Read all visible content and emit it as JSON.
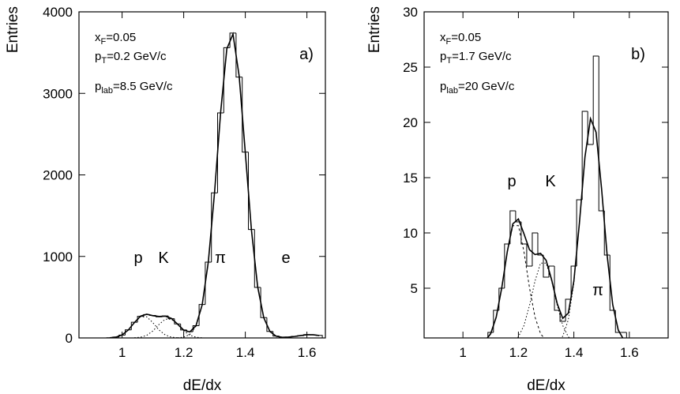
{
  "chart_data": [
    {
      "type": "histogram",
      "label": "a)",
      "xlabel": "dE/dx",
      "ylabel": "Entries",
      "xlim": [
        0.86,
        1.66
      ],
      "ylim": [
        0,
        4000
      ],
      "xticks": [
        1,
        1.2,
        1.4,
        1.6
      ],
      "yticks": [
        0,
        1000,
        2000,
        3000,
        4000
      ],
      "annotations": [
        {
          "text": "x",
          "sub": "F",
          "tail": "=0.05"
        },
        {
          "text": "p",
          "sub": "T",
          "tail": "=0.2 GeV/c"
        },
        {
          "text": "p",
          "sub": "lab",
          "tail": "=8.5 GeV/c"
        }
      ],
      "peak_labels": [
        "p",
        "K",
        "π",
        "e"
      ],
      "color": "#000000",
      "bins": [
        0.95,
        0.97,
        0.99,
        1.01,
        1.03,
        1.05,
        1.07,
        1.09,
        1.11,
        1.13,
        1.15,
        1.17,
        1.19,
        1.21,
        1.23,
        1.25,
        1.27,
        1.29,
        1.31,
        1.33,
        1.35,
        1.37,
        1.39,
        1.41,
        1.43,
        1.45,
        1.47,
        1.49,
        1.51,
        1.53,
        1.55,
        1.57,
        1.59,
        1.61,
        1.63,
        1.65
      ],
      "counts": [
        3,
        11,
        35,
        99,
        192,
        265,
        287,
        276,
        259,
        270,
        236,
        172,
        98,
        77,
        150,
        410,
        930,
        1780,
        2760,
        3560,
        3740,
        3200,
        2280,
        1330,
        620,
        250,
        80,
        23,
        9,
        11,
        19,
        28,
        41,
        37,
        31
      ],
      "x": [
        0.96,
        0.98,
        1.0,
        1.02,
        1.04,
        1.06,
        1.08,
        1.1,
        1.12,
        1.14,
        1.16,
        1.18,
        1.2,
        1.22,
        1.24,
        1.26,
        1.28,
        1.3,
        1.32,
        1.34,
        1.36,
        1.38,
        1.4,
        1.42,
        1.44,
        1.46,
        1.48,
        1.5,
        1.52,
        1.54,
        1.56,
        1.58,
        1.6,
        1.62,
        1.64
      ],
      "series": [
        {
          "style": "solid",
          "values": [
            2,
            10,
            37,
            97,
            189,
            268,
            291,
            273,
            263,
            267,
            240,
            170,
            96,
            74,
            152,
            406,
            935,
            1777,
            2772,
            3547,
            3727,
            3214,
            2274,
            1321,
            630,
            247,
            79,
            22,
            8,
            10,
            18,
            30,
            39,
            39,
            30
          ]
        },
        {
          "style": "dotted",
          "values": [
            2,
            10,
            37,
            97,
            187,
            259,
            259,
            187,
            97,
            37,
            10,
            2,
            null,
            null,
            null,
            null,
            null,
            null,
            null,
            null,
            null,
            null,
            null,
            null,
            null,
            null,
            null,
            null,
            null,
            null,
            null,
            null,
            null,
            null,
            null
          ]
        },
        {
          "style": "dotted",
          "values": [
            null,
            null,
            null,
            null,
            2,
            9,
            32,
            86,
            166,
            230,
            230,
            166,
            86,
            32,
            9,
            2,
            null,
            null,
            null,
            null,
            null,
            null,
            null,
            null,
            null,
            null,
            null,
            null,
            null,
            null,
            null,
            null,
            null,
            null,
            null
          ]
        },
        {
          "style": "dotted",
          "values": [
            null,
            null,
            null,
            null,
            null,
            null,
            null,
            null,
            null,
            null,
            null,
            2,
            10,
            42,
            143,
            404,
            935,
            1777,
            2772,
            3547,
            3727,
            3214,
            2274,
            1321,
            630,
            247,
            79,
            21,
            5,
            1,
            null,
            null,
            null,
            null,
            null
          ]
        },
        {
          "style": "dotted",
          "values": [
            null,
            null,
            null,
            null,
            null,
            null,
            null,
            null,
            null,
            null,
            null,
            null,
            null,
            null,
            null,
            null,
            null,
            null,
            null,
            null,
            null,
            null,
            null,
            null,
            null,
            null,
            null,
            1,
            3,
            9,
            18,
            30,
            39,
            39,
            30
          ]
        }
      ]
    },
    {
      "type": "histogram",
      "label": "b)",
      "xlabel": "dE/dx",
      "ylabel": "Entries",
      "xlim": [
        0.86,
        1.74
      ],
      "ylim": [
        0.5,
        30
      ],
      "xticks": [
        1,
        1.2,
        1.4,
        1.6
      ],
      "yticks": [
        5,
        10,
        15,
        20,
        25,
        30
      ],
      "annotations": [
        {
          "text": "x",
          "sub": "F",
          "tail": "=0.05"
        },
        {
          "text": "p",
          "sub": "T",
          "tail": "=1.7 GeV/c"
        },
        {
          "text": "p",
          "sub": "lab",
          "tail": "=20 GeV/c"
        }
      ],
      "peak_labels": [
        "p",
        "K",
        "π"
      ],
      "color": "#000000",
      "bins": [
        1.09,
        1.11,
        1.13,
        1.15,
        1.17,
        1.19,
        1.21,
        1.23,
        1.25,
        1.27,
        1.29,
        1.31,
        1.33,
        1.35,
        1.37,
        1.39,
        1.41,
        1.43,
        1.45,
        1.47,
        1.49,
        1.51,
        1.53,
        1.55,
        1.57,
        1.59,
        1.61
      ],
      "counts": [
        1,
        3,
        5,
        9,
        12,
        11,
        9,
        7,
        10,
        8,
        6,
        7,
        3,
        2,
        4,
        7,
        13,
        21,
        18,
        26,
        12,
        8,
        3,
        1,
        1,
        0
      ],
      "x": [
        1.08,
        1.1,
        1.12,
        1.14,
        1.16,
        1.18,
        1.2,
        1.22,
        1.24,
        1.26,
        1.28,
        1.3,
        1.32,
        1.34,
        1.36,
        1.38,
        1.4,
        1.42,
        1.44,
        1.46,
        1.48,
        1.5,
        1.52,
        1.54,
        1.56,
        1.58,
        1.6
      ],
      "series": [
        {
          "style": "solid",
          "values": [
            0.25,
            0.88,
            2.38,
            5.04,
            8.31,
            10.83,
            11.26,
            9.93,
            8.48,
            8.04,
            8.15,
            7.52,
            5.75,
            3.6,
            2.27,
            2.74,
            5.65,
            10.89,
            16.87,
            20.34,
            19.11,
            13.98,
            7.97,
            3.53,
            1.22,
            0.33,
            0.07
          ]
        },
        {
          "style": "dashed",
          "values": [
            0.25,
            0.88,
            2.38,
            5.04,
            8.31,
            10.66,
            10.66,
            8.31,
            5.04,
            2.38,
            0.88,
            0.25,
            0.06,
            null,
            null,
            null,
            null,
            null,
            null,
            null,
            null,
            null,
            null,
            null,
            null,
            null,
            null
          ]
        },
        {
          "style": "dotted",
          "values": [
            null,
            null,
            null,
            null,
            null,
            0.17,
            0.6,
            1.62,
            3.44,
            5.66,
            7.27,
            7.27,
            5.66,
            3.44,
            1.62,
            0.6,
            0.17,
            null,
            null,
            null,
            null,
            null,
            null,
            null,
            null,
            null,
            null
          ]
        },
        {
          "style": "dotted",
          "values": [
            null,
            null,
            null,
            null,
            null,
            null,
            null,
            null,
            null,
            null,
            null,
            null,
            0.03,
            0.16,
            0.65,
            2.14,
            5.48,
            10.89,
            16.87,
            20.34,
            19.11,
            13.98,
            7.97,
            3.53,
            1.22,
            0.33,
            0.07
          ]
        }
      ]
    }
  ]
}
